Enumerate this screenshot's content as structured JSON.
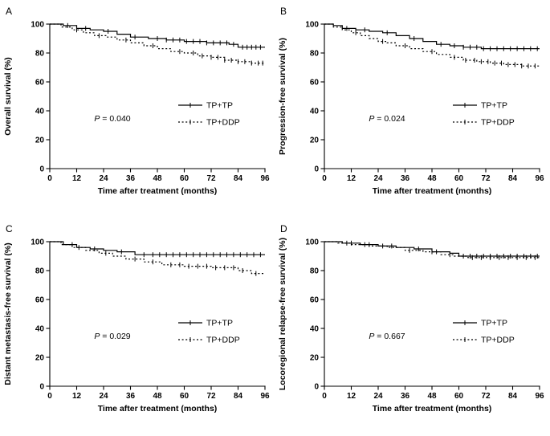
{
  "figure": {
    "background": "#ffffff",
    "line_color": "#000000",
    "panel_labels": [
      "A",
      "B",
      "C",
      "D"
    ]
  },
  "chart_data": [
    {
      "type": "line",
      "subtype": "kaplan-meier-step",
      "panel": "A",
      "ylabel": "Overall survival (%)",
      "xlabel": "Time after treatment (months)",
      "p_value": "P = 0.040",
      "xlim": [
        0,
        96
      ],
      "ylim": [
        0,
        100
      ],
      "x_ticks": [
        0,
        12,
        24,
        36,
        48,
        60,
        72,
        84,
        96
      ],
      "y_ticks": [
        0,
        20,
        40,
        60,
        80,
        100
      ],
      "legend_position": "center-right",
      "grid": false,
      "series": [
        {
          "name": "TP+TP",
          "line_style": "solid",
          "color": "#000000",
          "x": [
            0,
            6,
            12,
            18,
            24,
            30,
            36,
            44,
            52,
            60,
            70,
            80,
            84,
            96
          ],
          "y": [
            100,
            99,
            97,
            96,
            95,
            93,
            91,
            90,
            89,
            88,
            87,
            86,
            84,
            84
          ],
          "censor_x": [
            8,
            16,
            26,
            38,
            48,
            52,
            55,
            58,
            61,
            64,
            67,
            70,
            73,
            76,
            79,
            82,
            86,
            88,
            90,
            92,
            94
          ]
        },
        {
          "name": "TP+DDP",
          "line_style": "dotted",
          "color": "#000000",
          "x": [
            0,
            5,
            10,
            15,
            20,
            25,
            30,
            36,
            42,
            48,
            54,
            60,
            66,
            72,
            78,
            84,
            90,
            96
          ],
          "y": [
            100,
            98,
            96,
            94,
            92,
            91,
            89,
            87,
            85,
            83,
            81,
            80,
            78,
            77,
            75,
            74,
            73,
            73
          ],
          "censor_x": [
            12,
            22,
            34,
            46,
            58,
            64,
            68,
            72,
            75,
            78,
            81,
            84,
            87,
            90,
            93,
            95
          ]
        }
      ]
    },
    {
      "type": "line",
      "subtype": "kaplan-meier-step",
      "panel": "B",
      "ylabel": "Progression-free survival (%)",
      "xlabel": "Time after treatment (months)",
      "p_value": "P = 0.024",
      "xlim": [
        0,
        96
      ],
      "ylim": [
        0,
        100
      ],
      "x_ticks": [
        0,
        12,
        24,
        36,
        48,
        60,
        72,
        84,
        96
      ],
      "y_ticks": [
        0,
        20,
        40,
        60,
        80,
        100
      ],
      "legend_position": "center-right",
      "grid": false,
      "series": [
        {
          "name": "TP+TP",
          "line_style": "solid",
          "color": "#000000",
          "x": [
            0,
            4,
            8,
            14,
            20,
            26,
            32,
            38,
            44,
            50,
            56,
            62,
            70,
            96
          ],
          "y": [
            100,
            99,
            97,
            96,
            95,
            94,
            92,
            90,
            88,
            86,
            85,
            84,
            83,
            83
          ],
          "censor_x": [
            10,
            18,
            28,
            40,
            52,
            58,
            62,
            65,
            68,
            71,
            74,
            77,
            80,
            83,
            86,
            89,
            92,
            95
          ]
        },
        {
          "name": "TP+DDP",
          "line_style": "dotted",
          "color": "#000000",
          "x": [
            0,
            4,
            8,
            12,
            16,
            20,
            24,
            28,
            32,
            38,
            44,
            50,
            56,
            62,
            68,
            74,
            80,
            88,
            96
          ],
          "y": [
            100,
            98,
            96,
            94,
            92,
            90,
            88,
            87,
            85,
            83,
            81,
            79,
            77,
            75,
            74,
            73,
            72,
            71,
            71
          ],
          "censor_x": [
            14,
            26,
            36,
            48,
            58,
            63,
            67,
            70,
            73,
            76,
            79,
            82,
            85,
            88,
            91,
            94
          ]
        }
      ]
    },
    {
      "type": "line",
      "subtype": "kaplan-meier-step",
      "panel": "C",
      "ylabel": "Distant metastasis-free survival (%)",
      "xlabel": "Time after treatment (months)",
      "p_value": "P = 0.029",
      "xlim": [
        0,
        96
      ],
      "ylim": [
        0,
        100
      ],
      "x_ticks": [
        0,
        12,
        24,
        36,
        48,
        60,
        72,
        84,
        96
      ],
      "y_ticks": [
        0,
        20,
        40,
        60,
        80,
        100
      ],
      "legend_position": "center-right",
      "grid": false,
      "series": [
        {
          "name": "TP+TP",
          "line_style": "solid",
          "color": "#000000",
          "x": [
            0,
            6,
            12,
            18,
            24,
            30,
            38,
            96
          ],
          "y": [
            100,
            98,
            96,
            95,
            94,
            93,
            91,
            91
          ],
          "censor_x": [
            10,
            20,
            32,
            42,
            46,
            49,
            52,
            55,
            58,
            61,
            64,
            67,
            70,
            73,
            76,
            79,
            82,
            85,
            88,
            91,
            94
          ]
        },
        {
          "name": "TP+DDP",
          "line_style": "dotted",
          "color": "#000000",
          "x": [
            0,
            5,
            10,
            16,
            22,
            28,
            34,
            42,
            50,
            60,
            72,
            84,
            90,
            96
          ],
          "y": [
            100,
            98,
            96,
            94,
            92,
            90,
            88,
            86,
            84,
            83,
            82,
            80,
            78,
            78
          ],
          "censor_x": [
            13,
            25,
            38,
            46,
            54,
            58,
            62,
            66,
            70,
            74,
            78,
            82,
            86,
            92
          ]
        }
      ]
    },
    {
      "type": "line",
      "subtype": "kaplan-meier-step",
      "panel": "D",
      "ylabel": "Locoregional relapse-free survival (%)",
      "xlabel": "Time after treatment (months)",
      "p_value": "P = 0.667",
      "xlim": [
        0,
        96
      ],
      "ylim": [
        0,
        100
      ],
      "x_ticks": [
        0,
        12,
        24,
        36,
        48,
        60,
        72,
        84,
        96
      ],
      "y_ticks": [
        0,
        20,
        40,
        60,
        80,
        100
      ],
      "legend_position": "center-right",
      "grid": false,
      "series": [
        {
          "name": "TP+TP",
          "line_style": "solid",
          "color": "#000000",
          "x": [
            0,
            8,
            16,
            24,
            32,
            40,
            48,
            56,
            60,
            96
          ],
          "y": [
            100,
            99,
            98,
            97,
            96,
            95,
            93,
            92,
            90,
            90
          ],
          "censor_x": [
            12,
            20,
            30,
            42,
            50,
            62,
            65,
            68,
            71,
            74,
            77,
            80,
            83,
            86,
            89,
            92,
            95
          ]
        },
        {
          "name": "TP+DDP",
          "line_style": "dotted",
          "color": "#000000",
          "x": [
            0,
            6,
            12,
            20,
            28,
            36,
            44,
            52,
            58,
            64,
            96
          ],
          "y": [
            100,
            99,
            98,
            97,
            96,
            94,
            93,
            91,
            90,
            89,
            89
          ],
          "censor_x": [
            10,
            18,
            26,
            38,
            48,
            56,
            66,
            70,
            74,
            78,
            82,
            86,
            90,
            94
          ]
        }
      ]
    }
  ]
}
